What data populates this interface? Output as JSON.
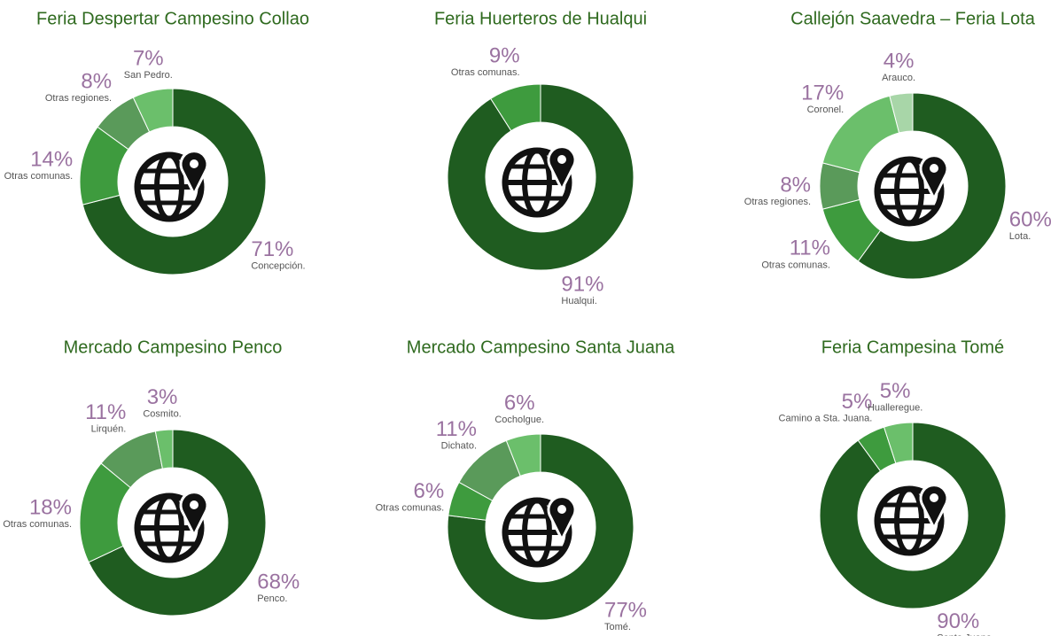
{
  "chart_data": [
    {
      "type": "pie",
      "title": "Feria Despertar Campesino Collao",
      "categories": [
        "Concepción.",
        "Otras comunas.",
        "Otras regiones.",
        "San Pedro."
      ],
      "values": [
        71,
        14,
        8,
        7
      ],
      "value_labels": [
        "71%",
        "14%",
        "8%",
        "7%"
      ],
      "colors": [
        "#1f5c20",
        "#3e9b3e",
        "#5a9a5a",
        "#6bbf6b"
      ]
    },
    {
      "type": "pie",
      "title": "Feria Huerteros de Hualqui",
      "categories": [
        "Hualqui.",
        "Otras comunas."
      ],
      "values": [
        91,
        9
      ],
      "value_labels": [
        "91%",
        "9%"
      ],
      "colors": [
        "#1f5c20",
        "#3e9b3e"
      ]
    },
    {
      "type": "pie",
      "title": "Callejón Saavedra – Feria Lota",
      "categories": [
        "Lota.",
        "Otras comunas.",
        "Otras regiones.",
        "Coronel.",
        "Arauco."
      ],
      "values": [
        60,
        11,
        8,
        17,
        4
      ],
      "value_labels": [
        "60%",
        "11%",
        "8%",
        "17%",
        "4%"
      ],
      "colors": [
        "#1f5c20",
        "#3e9b3e",
        "#5a9a5a",
        "#6bbf6b",
        "#a8d6a8"
      ]
    },
    {
      "type": "pie",
      "title": "Mercado Campesino Penco",
      "categories": [
        "Penco.",
        "Otras comunas.",
        "Lirquén.",
        "Cosmito."
      ],
      "values": [
        68,
        18,
        11,
        3
      ],
      "value_labels": [
        "68%",
        "18%",
        "11%",
        "3%"
      ],
      "colors": [
        "#1f5c20",
        "#3e9b3e",
        "#5a9a5a",
        "#6bbf6b"
      ]
    },
    {
      "type": "pie",
      "title": "Mercado Campesino Santa Juana",
      "categories": [
        "Tomé.",
        "Otras comunas.",
        "Dichato.",
        "Cocholgue."
      ],
      "values": [
        77,
        6,
        11,
        6
      ],
      "value_labels": [
        "77%",
        "6%",
        "11%",
        "6%"
      ],
      "colors": [
        "#1f5c20",
        "#3e9b3e",
        "#5a9a5a",
        "#6bbf6b"
      ]
    },
    {
      "type": "pie",
      "title": "Feria Campesina Tomé",
      "categories": [
        "Santa Juana.",
        "Camino a Sta. Juana.",
        "Hualleregue."
      ],
      "values": [
        90,
        5,
        5
      ],
      "value_labels": [
        "90%",
        "5%",
        "5%"
      ],
      "colors": [
        "#1f5c20",
        "#3e9b3e",
        "#6bbf6b"
      ]
    }
  ]
}
